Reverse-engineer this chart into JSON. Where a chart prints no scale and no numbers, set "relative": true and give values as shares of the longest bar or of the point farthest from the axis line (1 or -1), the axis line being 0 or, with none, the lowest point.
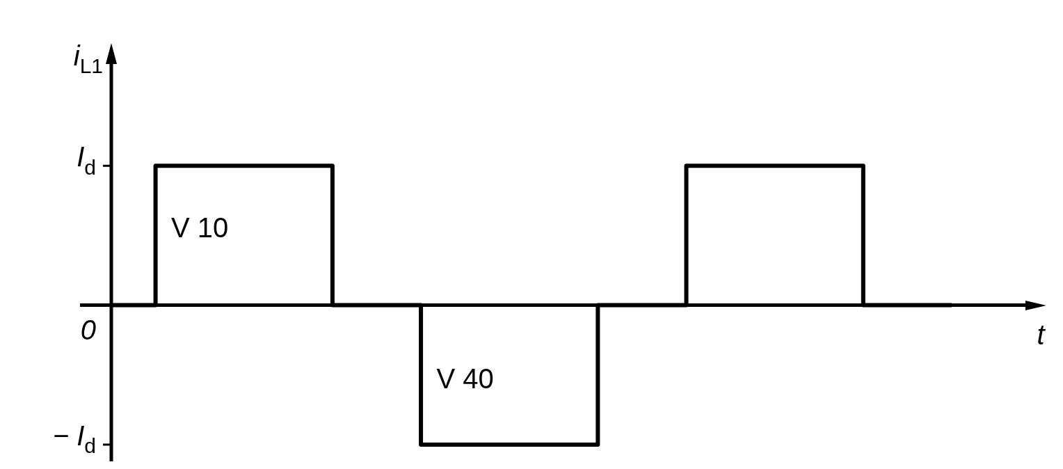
{
  "chart_data": {
    "type": "step",
    "ylabel": "i$_{L1}$",
    "xlabel": "t",
    "categories": [
      null,
      null,
      null,
      null,
      null,
      null,
      null,
      null,
      null,
      null,
      null,
      null,
      null,
      null,
      null,
      null,
      null,
      null,
      null,
      null
    ],
    "relative": true,
    "tick_labels": "y",
    "grid": false,
    "legend": false,
    "series": [
      {
        "color": "#000000",
        "values": [
          0,
          1,
          1,
          1,
          1,
          0,
          0,
          -1,
          -1,
          -1,
          -1,
          0,
          0,
          1,
          1,
          1,
          1,
          0,
          0,
          0
        ]
      }
    ],
    "annotations": [
      "V 10",
      "V 40",
      "I$_{d}$",
      "0",
      "− I$_{d}$"
    ]
  }
}
